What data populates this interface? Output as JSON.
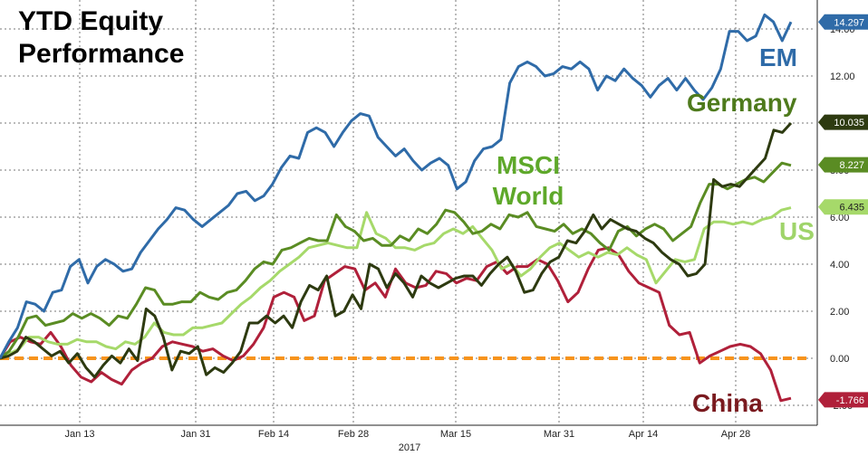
{
  "chart_data": {
    "type": "line",
    "title": "YTD Equity Performance",
    "xlabel": "2017",
    "ylabel": "",
    "ylim": [
      -2.5,
      15
    ],
    "grid": true,
    "x_ticks": [
      "Jan 13",
      "Jan 31",
      "Feb 14",
      "Feb 28",
      "Mar 15",
      "Mar 31",
      "Apr 14",
      "Apr 28"
    ],
    "y_ticks": [
      "-2.00",
      "0.00",
      "2.00",
      "4.00",
      "6.00",
      "8.00",
      "10.00",
      "12.00",
      "14.00"
    ],
    "reference_line": {
      "value": 0,
      "color": "#f7941d",
      "style": "dashed"
    },
    "legend": "inline labels",
    "series": [
      {
        "name": "EM",
        "color": "#2f6ba8",
        "last_value": "14.297",
        "values": [
          0,
          0.7,
          1.3,
          2.4,
          2.3,
          2.0,
          2.8,
          2.9,
          3.9,
          4.2,
          3.2,
          3.9,
          4.2,
          4.0,
          3.7,
          3.8,
          4.5,
          5.0,
          5.5,
          5.9,
          6.4,
          6.3,
          5.9,
          5.6,
          5.9,
          6.2,
          6.5,
          7.0,
          7.1,
          6.7,
          6.9,
          7.4,
          8.1,
          8.6,
          8.5,
          9.6,
          9.8,
          9.6,
          9.0,
          9.6,
          10.1,
          10.4,
          10.3,
          9.4,
          9.0,
          8.6,
          8.9,
          8.4,
          8.0,
          8.3,
          8.5,
          8.2,
          7.2,
          7.5,
          8.4,
          8.9,
          9.0,
          9.3,
          11.7,
          12.4,
          12.6,
          12.4,
          12.0,
          12.1,
          12.4,
          12.3,
          12.6,
          12.3,
          11.4,
          12.0,
          11.8,
          12.3,
          11.9,
          11.6,
          11.1,
          11.6,
          11.9,
          11.4,
          11.9,
          11.4,
          11.0,
          11.5,
          12.3,
          13.9,
          13.9,
          13.5,
          13.7,
          14.6,
          14.3,
          13.5,
          14.3
        ]
      },
      {
        "name": "Germany",
        "color": "#2d3a10",
        "last_value": "10.035",
        "values": [
          0,
          0.1,
          0.3,
          0.9,
          0.7,
          0.4,
          0.1,
          0.3,
          -0.2,
          0.2,
          -0.4,
          -0.8,
          -0.3,
          0.1,
          -0.2,
          0.4,
          -0.1,
          2.1,
          1.8,
          0.9,
          -0.5,
          0.3,
          0.2,
          0.5,
          -0.7,
          -0.4,
          -0.6,
          -0.2,
          0.3,
          1.5,
          1.5,
          1.8,
          1.5,
          1.8,
          1.3,
          2.4,
          3.1,
          2.9,
          3.5,
          1.8,
          2.0,
          2.7,
          2.1,
          4.0,
          3.8,
          3.0,
          3.6,
          3.2,
          2.6,
          3.5,
          3.2,
          3.0,
          3.2,
          3.4,
          3.5,
          3.5,
          3.1,
          3.6,
          4.0,
          4.3,
          3.7,
          2.8,
          2.9,
          3.6,
          4.1,
          4.3,
          5.0,
          4.9,
          5.4,
          6.1,
          5.5,
          5.9,
          5.7,
          5.5,
          5.4,
          5.1,
          4.9,
          4.5,
          4.2,
          4.0,
          3.5,
          3.6,
          4.0,
          7.6,
          7.3,
          7.4,
          7.3,
          7.7,
          8.1,
          8.5,
          9.7,
          9.6,
          10.0
        ]
      },
      {
        "name": "MSCI World",
        "color": "#5a8c23",
        "last_value": "8.227",
        "values": [
          0,
          0.3,
          0.9,
          1.7,
          1.8,
          1.4,
          1.5,
          1.6,
          1.9,
          1.7,
          1.9,
          1.7,
          1.4,
          1.8,
          1.7,
          2.3,
          3.0,
          2.9,
          2.3,
          2.3,
          2.4,
          2.4,
          2.8,
          2.6,
          2.5,
          2.8,
          2.9,
          3.3,
          3.8,
          4.1,
          4.0,
          4.6,
          4.7,
          4.9,
          5.1,
          5.0,
          5.0,
          6.1,
          5.6,
          5.4,
          5.0,
          5.1,
          4.8,
          4.8,
          5.2,
          5.0,
          5.5,
          5.3,
          5.7,
          6.3,
          6.2,
          5.8,
          5.3,
          5.4,
          5.7,
          5.5,
          6.1,
          6.0,
          6.2,
          5.6,
          5.5,
          5.4,
          5.7,
          5.3,
          5.5,
          5.3,
          4.9,
          4.6,
          5.4,
          5.6,
          5.2,
          5.5,
          5.7,
          5.5,
          5.0,
          5.3,
          5.6,
          6.6,
          7.4,
          7.4,
          7.2,
          7.4,
          7.6,
          7.7,
          7.5,
          7.9,
          8.3,
          8.2
        ]
      },
      {
        "name": "US",
        "color": "#a6d96a",
        "last_value": "6.435",
        "values": [
          0,
          0.2,
          0.4,
          0.9,
          0.9,
          0.7,
          0.6,
          0.6,
          0.8,
          0.7,
          0.7,
          0.5,
          0.4,
          0.7,
          0.6,
          0.9,
          1.5,
          1.1,
          1.0,
          1.0,
          1.3,
          1.3,
          1.4,
          1.5,
          1.9,
          2.3,
          2.6,
          3.0,
          3.3,
          3.7,
          4.0,
          4.3,
          4.7,
          4.8,
          4.9,
          4.8,
          4.7,
          4.7,
          6.2,
          5.3,
          5.1,
          4.7,
          4.7,
          4.6,
          4.8,
          4.9,
          5.3,
          5.5,
          5.3,
          5.6,
          5.1,
          4.6,
          3.8,
          4.0,
          3.5,
          3.8,
          4.3,
          4.7,
          4.9,
          4.6,
          4.3,
          4.5,
          4.3,
          4.5,
          4.4,
          4.7,
          4.4,
          4.2,
          3.2,
          3.7,
          4.2,
          4.1,
          4.2,
          5.5,
          5.8,
          5.8,
          5.7,
          5.8,
          5.7,
          5.9,
          6.0,
          6.3,
          6.4
        ]
      },
      {
        "name": "China",
        "color": "#b0203a",
        "last_value": "-1.766",
        "values": [
          0,
          0.7,
          0.9,
          0.7,
          0.6,
          1.1,
          0.5,
          -0.3,
          -0.8,
          -1.0,
          -0.6,
          -0.9,
          -1.1,
          -0.5,
          -0.2,
          0,
          0.5,
          0.7,
          0.6,
          0.5,
          0.3,
          0.4,
          0.1,
          -0.1,
          0.1,
          0.6,
          1.3,
          2.6,
          2.8,
          2.6,
          1.6,
          1.8,
          3.3,
          3.6,
          3.9,
          3.8,
          2.9,
          3.2,
          2.6,
          3.8,
          3.2,
          3.0,
          3.1,
          3.7,
          3.6,
          3.2,
          3.4,
          3.3,
          3.9,
          4.1,
          3.6,
          3.9,
          3.9,
          4.2,
          4.0,
          3.3,
          2.4,
          2.8,
          3.8,
          4.6,
          4.7,
          4.4,
          3.7,
          3.2,
          3.0,
          2.8,
          1.4,
          1.0,
          1.1,
          -0.2,
          0.1,
          0.3,
          0.5,
          0.6,
          0.5,
          0.2,
          -0.5,
          -1.8,
          -1.7
        ]
      }
    ]
  }
}
